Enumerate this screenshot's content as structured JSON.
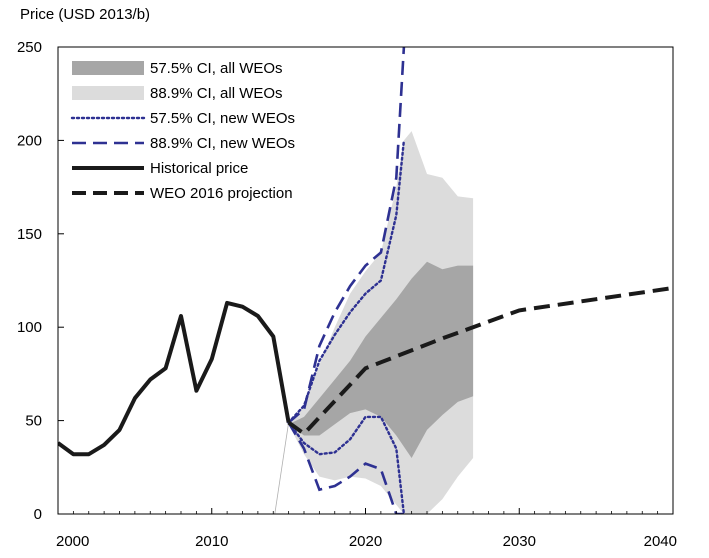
{
  "chart_data": {
    "type": "area",
    "title": "",
    "ylabel": "Price (USD 2013/b)",
    "xlabel": "",
    "xlim": [
      2000,
      2040
    ],
    "ylim": [
      0,
      250
    ],
    "x_ticks": [
      2000,
      2010,
      2020,
      2030,
      2040
    ],
    "y_ticks": [
      0,
      50,
      100,
      150,
      200,
      250
    ],
    "grid": false,
    "legend": "top-left",
    "colors": {
      "ci575_all": "#a6a6a6",
      "ci889_all": "#dcdcdc",
      "new_weo": "#2e3192",
      "historical": "#1a1a1a",
      "projection": "#1a1a1a"
    },
    "series": [
      {
        "name": "57.5% CI, all WEOs",
        "kind": "band",
        "x": [
          2015,
          2016,
          2017,
          2018,
          2019,
          2020,
          2021,
          2022,
          2023,
          2024,
          2025,
          2026,
          2027
        ],
        "upper": [
          48,
          52,
          62,
          72,
          82,
          95,
          105,
          115,
          126,
          135,
          131,
          133,
          133
        ],
        "lower": [
          48,
          42,
          42,
          48,
          54,
          56,
          52,
          42,
          30,
          45,
          53,
          60,
          63
        ]
      },
      {
        "name": "88.9% CI, all WEOs",
        "kind": "band",
        "x": [
          2015,
          2016,
          2017,
          2018,
          2019,
          2020,
          2021,
          2022,
          2022.5,
          2023,
          2024,
          2025,
          2026,
          2027
        ],
        "upper": [
          48,
          58,
          80,
          100,
          118,
          130,
          140,
          175,
          200,
          205,
          182,
          180,
          170,
          169
        ],
        "lower": [
          48,
          32,
          20,
          18,
          20,
          19,
          15,
          5,
          0,
          0,
          0,
          8,
          20,
          30
        ]
      },
      {
        "name": "57.5% CI, new WEOs",
        "kind": "pair",
        "style": "dotted",
        "x": [
          2015,
          2016,
          2017,
          2018,
          2019,
          2020,
          2021,
          2022,
          2022.5
        ],
        "upper": [
          49,
          58,
          82,
          96,
          108,
          118,
          125,
          160,
          200
        ],
        "lower": [
          49,
          38,
          32,
          33,
          40,
          52,
          52,
          35,
          0
        ]
      },
      {
        "name": "88.9% CI, new WEOs",
        "kind": "pair",
        "style": "dashed",
        "x": [
          2015,
          2016,
          2017,
          2018,
          2019,
          2020,
          2021,
          2022,
          2022.5
        ],
        "upper": [
          49,
          56,
          90,
          108,
          122,
          133,
          140,
          180,
          250
        ],
        "lower": [
          49,
          35,
          13,
          15,
          20,
          27,
          24,
          0,
          0
        ]
      },
      {
        "name": "Historical price",
        "kind": "line",
        "style": "solid",
        "x": [
          2000,
          2001,
          2002,
          2003,
          2004,
          2005,
          2006,
          2007,
          2008,
          2009,
          2010,
          2011,
          2012,
          2013,
          2014,
          2015
        ],
        "y": [
          38,
          32,
          32,
          37,
          45,
          62,
          72,
          78,
          106,
          66,
          83,
          113,
          111,
          106,
          95,
          49
        ]
      },
      {
        "name": "WEO 2016 projection",
        "kind": "line",
        "style": "dashed",
        "x": [
          2015,
          2016,
          2020,
          2025,
          2030,
          2035,
          2040
        ],
        "y": [
          49,
          43,
          78,
          94,
          109,
          115,
          121
        ]
      }
    ]
  }
}
